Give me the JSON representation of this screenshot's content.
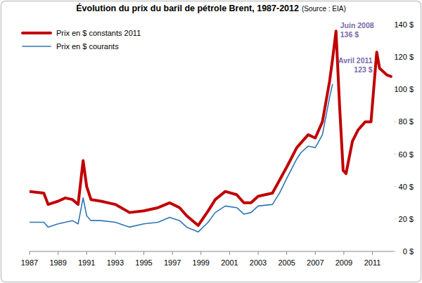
{
  "chart_data": {
    "type": "line",
    "title": "Évolution du prix du baril de pétrole Brent, 1987-2012",
    "subtitle": "(Source : EIA)",
    "x": [
      1987,
      1988,
      1988.3,
      1989,
      1989.5,
      1990,
      1990.4,
      1990.75,
      1991,
      1991.3,
      1992,
      1993,
      1994,
      1995,
      1996,
      1996.8,
      1997.5,
      1998,
      1998.8,
      1999.5,
      2000,
      2000.7,
      2001.5,
      2002,
      2002.5,
      2003,
      2004,
      2004.5,
      2005,
      2005.7,
      2006,
      2006.5,
      2007,
      2007.5,
      2008,
      2008.2,
      2008.45,
      2008.7,
      2008.95,
      2009.15,
      2009.6,
      2010,
      2010.5,
      2010.9,
      2011.3,
      2011.5,
      2012,
      2012.3
    ],
    "series": [
      {
        "name": "Prix en $ constants 2011",
        "color": "#c00000",
        "values": [
          37,
          36,
          29,
          31,
          33,
          32,
          29,
          56,
          40,
          32,
          31,
          29,
          24,
          25,
          27,
          30,
          27,
          22,
          16,
          25,
          32,
          37,
          35,
          30,
          30,
          34,
          36,
          44,
          52,
          64,
          67,
          72,
          70,
          80,
          105,
          118,
          136,
          90,
          50,
          48,
          68,
          75,
          80,
          80,
          123,
          113,
          109,
          108
        ]
      },
      {
        "name": "Prix en $ courants",
        "color": "#2e75b6",
        "values": [
          18,
          18,
          15,
          17,
          18,
          19,
          17,
          33,
          22,
          19,
          19,
          18,
          15,
          17,
          18,
          21,
          19,
          15,
          12,
          18,
          24,
          28,
          27,
          23,
          24,
          28,
          29,
          36,
          45,
          57,
          61,
          65,
          64,
          72,
          95,
          103,
          null,
          null,
          null,
          null,
          null,
          null,
          null,
          null,
          null,
          null,
          null,
          null
        ]
      }
    ],
    "annotations": [
      {
        "lines": [
          "Juin 2008",
          "136 $"
        ],
        "x": 2008.45,
        "y": 136
      },
      {
        "lines": [
          "Avril 2011",
          "123 $"
        ],
        "x": 2011.3,
        "y": 123
      }
    ],
    "xlim": [
      1987,
      2012.5
    ],
    "xticks": [
      1987,
      1989,
      1991,
      1993,
      1995,
      1997,
      1999,
      2001,
      2003,
      2005,
      2007,
      2009,
      2011
    ],
    "ylim": [
      0,
      140
    ],
    "yticks": [
      {
        "value": 0,
        "label": "0 $"
      },
      {
        "value": 20,
        "label": "20 $"
      },
      {
        "value": 40,
        "label": "40 $"
      },
      {
        "value": 60,
        "label": "60 $"
      },
      {
        "value": 80,
        "label": "80 $"
      },
      {
        "value": 100,
        "label": "100 $"
      },
      {
        "value": 120,
        "label": "120 $"
      },
      {
        "value": 140,
        "label": "140 $"
      }
    ],
    "grid": false,
    "legend": "top-left"
  }
}
